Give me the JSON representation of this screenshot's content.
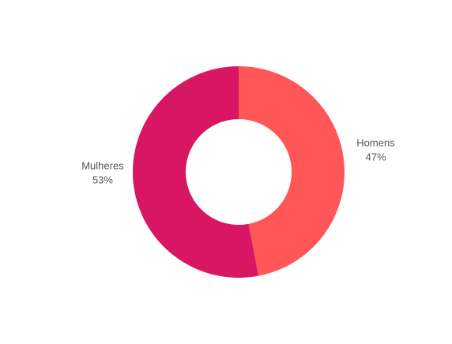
{
  "chart_data": {
    "type": "pie",
    "donut": true,
    "title": "",
    "categories": [
      "Homens",
      "Mulheres"
    ],
    "values": [
      47,
      53
    ],
    "percent_labels": [
      "47%",
      "53%"
    ],
    "colors": [
      "#ff5757",
      "#d81663"
    ],
    "legend": "none"
  }
}
